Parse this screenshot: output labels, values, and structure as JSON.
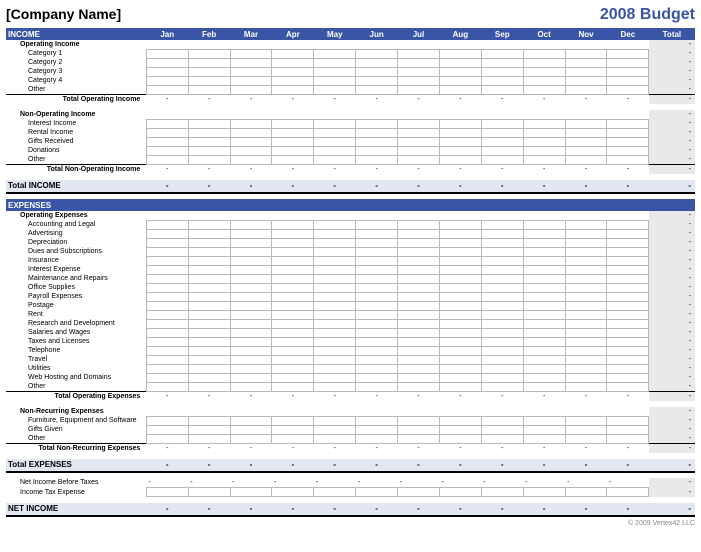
{
  "header": {
    "company": "[Company Name]",
    "title": "2008 Budget"
  },
  "months": [
    "Jan",
    "Feb",
    "Mar",
    "Apr",
    "May",
    "Jun",
    "Jul",
    "Aug",
    "Sep",
    "Oct",
    "Nov",
    "Dec"
  ],
  "total_label": "Total",
  "dash": "-",
  "income": {
    "section": "INCOME",
    "operating": {
      "group": "Operating Income",
      "lines": [
        "Category 1",
        "Category 2",
        "Category 3",
        "Category 4",
        "Other"
      ],
      "subtotal": "Total Operating Income"
    },
    "nonop": {
      "group": "Non-Operating Income",
      "lines": [
        "Interest Income",
        "Rental Income",
        "Gifts Received",
        "Donations",
        "Other"
      ],
      "subtotal": "Total Non-Operating Income"
    },
    "total": "Total INCOME"
  },
  "expenses": {
    "section": "EXPENSES",
    "operating": {
      "group": "Operating Expenses",
      "lines": [
        "Accounting and Legal",
        "Advertising",
        "Depreciation",
        "Dues and Subscriptions",
        "Insurance",
        "Interest Expense",
        "Maintenance and Repairs",
        "Office Supplies",
        "Payroll Expenses",
        "Postage",
        "Rent",
        "Research and Development",
        "Salaries and Wages",
        "Taxes and Licenses",
        "Telephone",
        "Travel",
        "Utilities",
        "Web Hosting and Domains",
        "Other"
      ],
      "subtotal": "Total Operating Expenses"
    },
    "nonrec": {
      "group": "Non-Recurring Expenses",
      "lines": [
        "Furniture, Equipment and Software",
        "Gifts Given",
        "Other"
      ],
      "subtotal": "Total Non-Recurring Expenses"
    },
    "total": "Total EXPENSES"
  },
  "net": {
    "before_tax": "Net Income Before Taxes",
    "tax": "Income Tax Expense",
    "net": "NET INCOME"
  },
  "footer": "© 2009 Vertex42 LLC",
  "colors": {
    "section_bg": "#3a55a5",
    "section_fg": "#ffffff",
    "total_row_bg": "#e3e7f2",
    "total_col_bg": "#e9e9e9",
    "grid": "#b8b8b8"
  }
}
